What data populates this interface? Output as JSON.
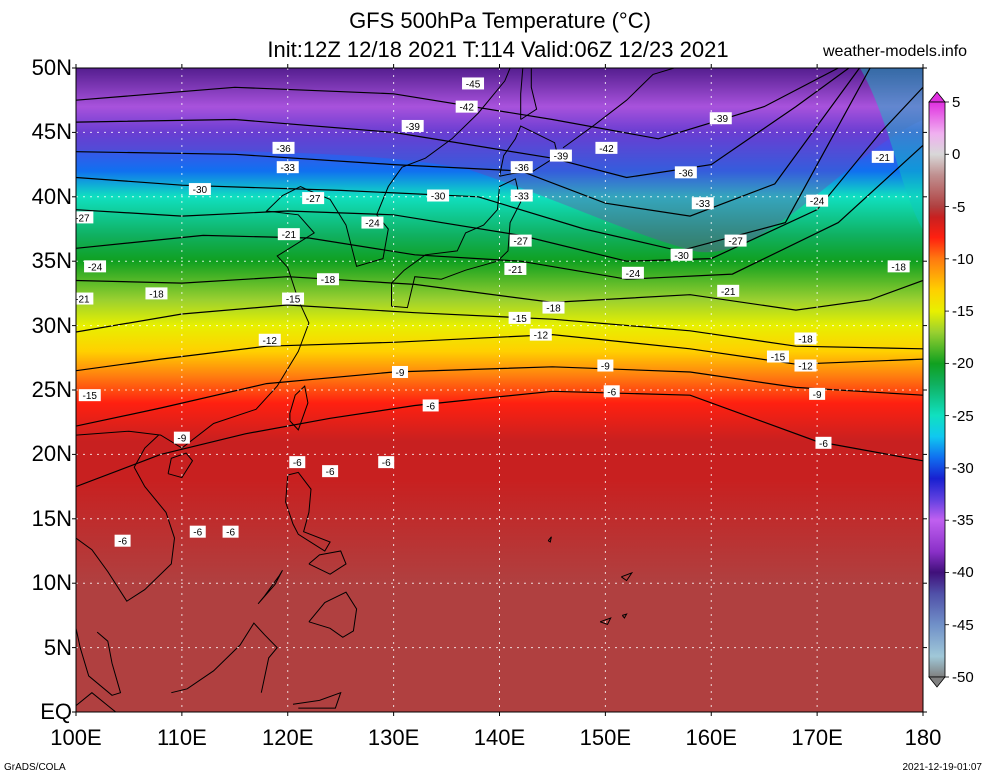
{
  "header": {
    "title_line1": "GFS 500hPa Temperature (°C)",
    "title_line2": "Init:12Z 12/18 2021 T:114 Valid:06Z 12/23 2021",
    "site": "weather-models.info"
  },
  "footer": {
    "left": "GrADS/COLA",
    "right": "2021-12-19-01:07"
  },
  "map": {
    "lat_labels": [
      "50N",
      "45N",
      "40N",
      "35N",
      "30N",
      "25N",
      "20N",
      "15N",
      "10N",
      "5N",
      "EQ"
    ],
    "lon_labels": [
      "100E",
      "110E",
      "120E",
      "130E",
      "140E",
      "150E",
      "160E",
      "170E",
      "180"
    ],
    "lat_range": [
      0,
      50
    ],
    "lon_range": [
      100,
      180
    ],
    "contour_labels": [
      {
        "text": "-45",
        "lon": 137.5,
        "lat": 48.8
      },
      {
        "text": "-42",
        "lon": 136.9,
        "lat": 47.0
      },
      {
        "text": "-39",
        "lon": 131.8,
        "lat": 45.5
      },
      {
        "text": "-39",
        "lon": 145.8,
        "lat": 43.2
      },
      {
        "text": "-42",
        "lon": 150.1,
        "lat": 43.8
      },
      {
        "text": "-39",
        "lon": 160.9,
        "lat": 46.1
      },
      {
        "text": "-36",
        "lon": 119.6,
        "lat": 43.8
      },
      {
        "text": "-33",
        "lon": 120.0,
        "lat": 42.3
      },
      {
        "text": "-36",
        "lon": 142.1,
        "lat": 42.3
      },
      {
        "text": "-36",
        "lon": 157.6,
        "lat": 41.9
      },
      {
        "text": "-30",
        "lon": 111.7,
        "lat": 40.6
      },
      {
        "text": "-27",
        "lon": 122.4,
        "lat": 39.9
      },
      {
        "text": "-30",
        "lon": 134.2,
        "lat": 40.1
      },
      {
        "text": "-33",
        "lon": 142.1,
        "lat": 40.1
      },
      {
        "text": "-33",
        "lon": 159.2,
        "lat": 39.5
      },
      {
        "text": "-24",
        "lon": 170.0,
        "lat": 39.7
      },
      {
        "text": "-27",
        "lon": 100.6,
        "lat": 38.4
      },
      {
        "text": "-24",
        "lon": 128.0,
        "lat": 38.0
      },
      {
        "text": "-21",
        "lon": 120.1,
        "lat": 37.1
      },
      {
        "text": "-27",
        "lon": 142.0,
        "lat": 36.6
      },
      {
        "text": "-27",
        "lon": 162.3,
        "lat": 36.6
      },
      {
        "text": "-21",
        "lon": 176.2,
        "lat": 43.1
      },
      {
        "text": "-24",
        "lon": 101.8,
        "lat": 34.6
      },
      {
        "text": "-21",
        "lon": 141.5,
        "lat": 34.4
      },
      {
        "text": "-24",
        "lon": 152.6,
        "lat": 34.1
      },
      {
        "text": "-30",
        "lon": 157.2,
        "lat": 35.5
      },
      {
        "text": "-18",
        "lon": 177.7,
        "lat": 34.6
      },
      {
        "text": "-21",
        "lon": 100.6,
        "lat": 32.1
      },
      {
        "text": "-18",
        "lon": 107.6,
        "lat": 32.5
      },
      {
        "text": "-18",
        "lon": 123.8,
        "lat": 33.6
      },
      {
        "text": "-15",
        "lon": 120.5,
        "lat": 32.1
      },
      {
        "text": "-21",
        "lon": 161.6,
        "lat": 32.7
      },
      {
        "text": "-18",
        "lon": 145.1,
        "lat": 31.4
      },
      {
        "text": "-15",
        "lon": 141.9,
        "lat": 30.6
      },
      {
        "text": "-12",
        "lon": 143.9,
        "lat": 29.3
      },
      {
        "text": "-18",
        "lon": 168.9,
        "lat": 29.0
      },
      {
        "text": "-12",
        "lon": 118.3,
        "lat": 28.9
      },
      {
        "text": "-15",
        "lon": 166.3,
        "lat": 27.6
      },
      {
        "text": "-12",
        "lon": 168.9,
        "lat": 26.9
      },
      {
        "text": "-9",
        "lon": 150.0,
        "lat": 26.9
      },
      {
        "text": "-9",
        "lon": 130.6,
        "lat": 26.4
      },
      {
        "text": "-6",
        "lon": 150.6,
        "lat": 24.9
      },
      {
        "text": "-9",
        "lon": 170.0,
        "lat": 24.7
      },
      {
        "text": "-15",
        "lon": 101.3,
        "lat": 24.6
      },
      {
        "text": "-6",
        "lon": 133.5,
        "lat": 23.8
      },
      {
        "text": "-9",
        "lon": 110.0,
        "lat": 21.3
      },
      {
        "text": "-6",
        "lon": 170.6,
        "lat": 20.9
      },
      {
        "text": "-6",
        "lon": 120.9,
        "lat": 19.4
      },
      {
        "text": "-6",
        "lon": 124.0,
        "lat": 18.7
      },
      {
        "text": "-6",
        "lon": 129.3,
        "lat": 19.4
      },
      {
        "text": "-6",
        "lon": 104.4,
        "lat": 13.3
      },
      {
        "text": "-6",
        "lon": 111.5,
        "lat": 14.0
      },
      {
        "text": "-6",
        "lon": 114.6,
        "lat": 14.0
      }
    ]
  },
  "colorbar": {
    "labels": [
      "5",
      "0",
      "-5",
      "-10",
      "-15",
      "-20",
      "-25",
      "-30",
      "-35",
      "-40",
      "-45",
      "-50"
    ],
    "min": -50,
    "max": 5,
    "stops": [
      {
        "t": 5,
        "color": "#e030e0"
      },
      {
        "t": 2,
        "color": "#f0b0f0"
      },
      {
        "t": 0,
        "color": "#d8d8d8"
      },
      {
        "t": -2,
        "color": "#c09090"
      },
      {
        "t": -5,
        "color": "#b04040"
      },
      {
        "t": -6,
        "color": "#c82020"
      },
      {
        "t": -8,
        "color": "#ff2010"
      },
      {
        "t": -10,
        "color": "#ff7a10"
      },
      {
        "t": -13,
        "color": "#ffd000"
      },
      {
        "t": -15,
        "color": "#e8f000"
      },
      {
        "t": -17,
        "color": "#9ad030"
      },
      {
        "t": -20,
        "color": "#10a020"
      },
      {
        "t": -22,
        "color": "#10b060"
      },
      {
        "t": -25,
        "color": "#10e0c0"
      },
      {
        "t": -27,
        "color": "#10c8f0"
      },
      {
        "t": -29,
        "color": "#1070f0"
      },
      {
        "t": -31,
        "color": "#1820d0"
      },
      {
        "t": -33,
        "color": "#6040e0"
      },
      {
        "t": -35,
        "color": "#c060f0"
      },
      {
        "t": -38,
        "color": "#8a30c8"
      },
      {
        "t": -40,
        "color": "#40107a"
      },
      {
        "t": -42,
        "color": "#5050a8"
      },
      {
        "t": -45,
        "color": "#7090c8"
      },
      {
        "t": -48,
        "color": "#a0c8d8"
      },
      {
        "t": -50,
        "color": "#808080"
      }
    ]
  }
}
